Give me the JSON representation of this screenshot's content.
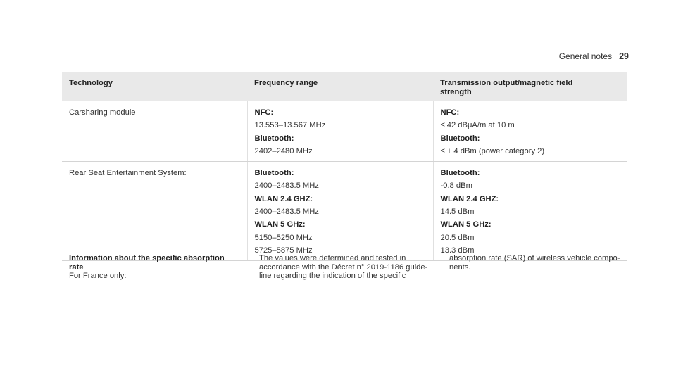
{
  "header": {
    "section": "General notes",
    "page": "29"
  },
  "table": {
    "headers": [
      "Technology",
      "Frequency range",
      "Transmission output/magnetic field strength"
    ],
    "rows": [
      {
        "technology": "Carsharing module",
        "frequency": [
          {
            "label": "NFC:",
            "value": "13.553–13.567 MHz"
          },
          {
            "label": "Bluetooth:",
            "value": "2402–2480 MHz"
          }
        ],
        "output": [
          {
            "label": "NFC:",
            "value": "≤ 42 dBμA/m at 10 m"
          },
          {
            "label": "Bluetooth:",
            "value": "≤ + 4 dBm (power category 2)"
          }
        ]
      },
      {
        "technology": "Rear Seat Entertainment System:",
        "frequency": [
          {
            "label": "Bluetooth:",
            "value": "2400–2483.5 MHz"
          },
          {
            "label": "WLAN 2.4 GHZ:",
            "value": "2400–2483.5 MHz"
          },
          {
            "label": "WLAN 5 GHz:",
            "value": "5150–5250 MHz"
          },
          {
            "label": "",
            "value": "5725–5875 MHz"
          }
        ],
        "output": [
          {
            "label": "Bluetooth:",
            "value": "-0.8 dBm"
          },
          {
            "label": "WLAN 2.4 GHZ:",
            "value": "14.5 dBm"
          },
          {
            "label": "WLAN 5 GHz:",
            "value": "20.5 dBm"
          },
          {
            "label": "",
            "value": "13.3 dBm"
          }
        ]
      }
    ]
  },
  "info": {
    "title_line1": "Information about the specific absorption",
    "title_line2": "rate",
    "col1_text": "For France only:",
    "col2_line1": "The values were determined and tested in",
    "col2_line2": "accordance with the Décret n° 2019-1186 guide-",
    "col2_line3": "line regarding the indication of the specific",
    "col3_line1": "absorption rate (SAR) of wireless vehicle compo-",
    "col3_line2": "nents."
  }
}
